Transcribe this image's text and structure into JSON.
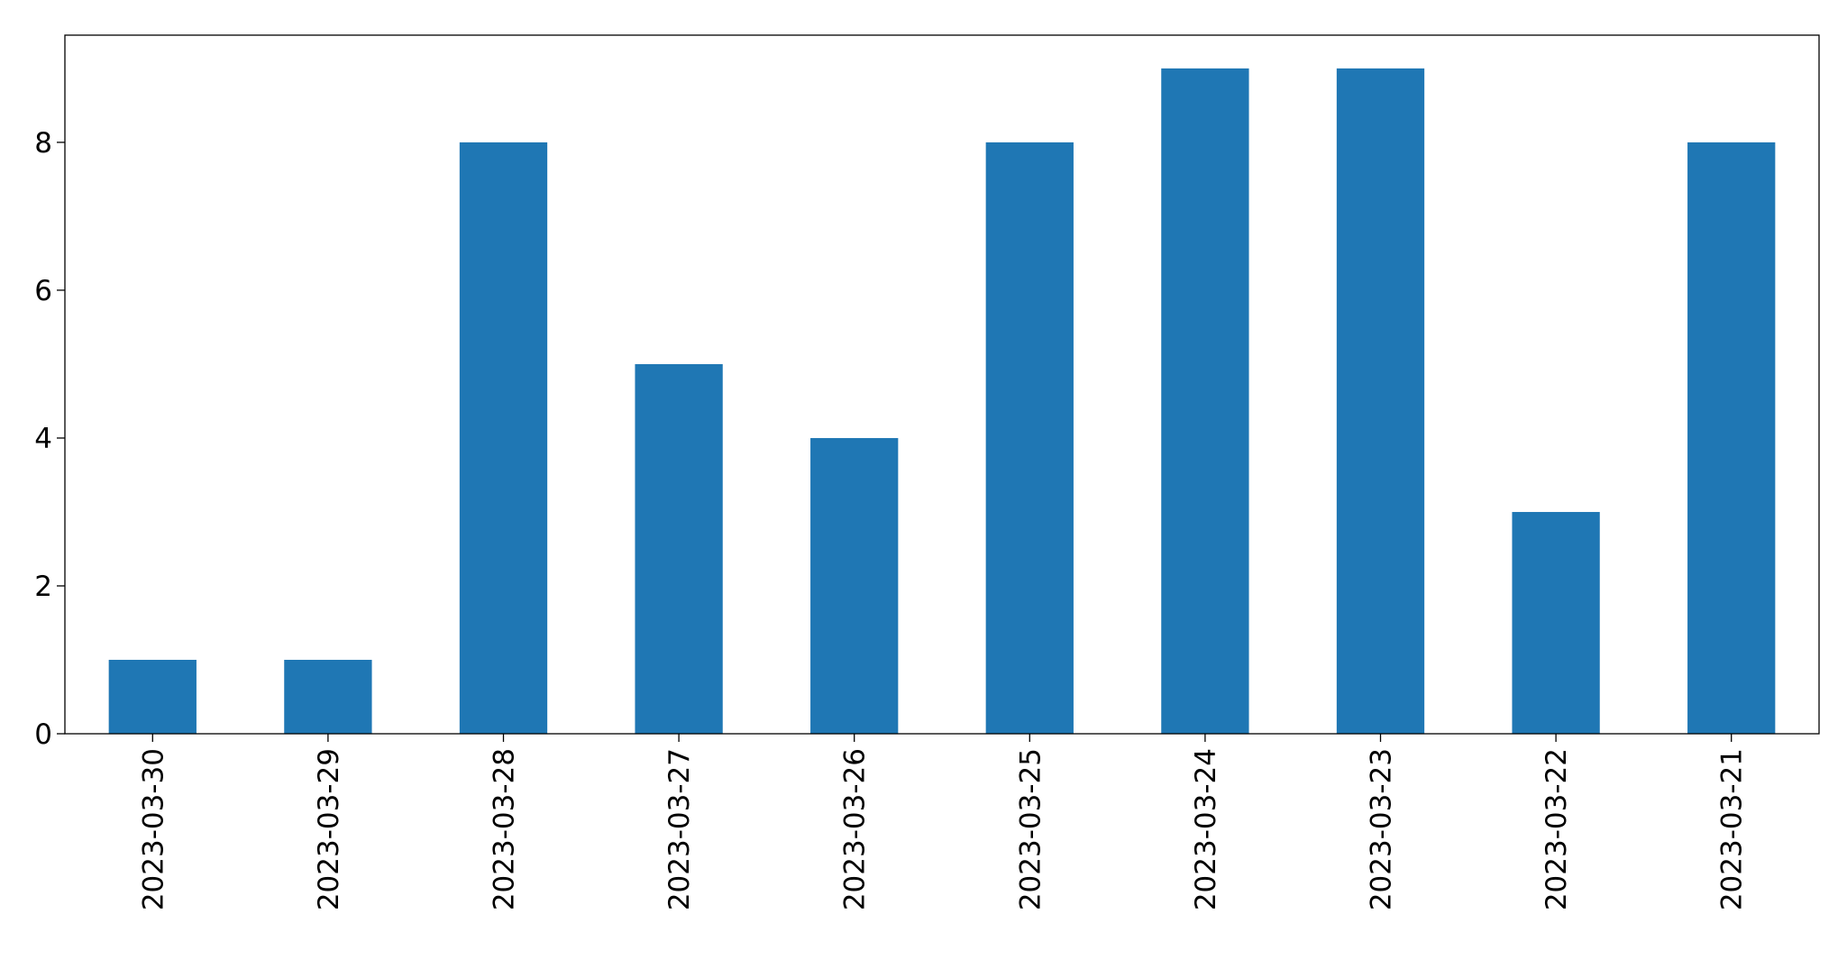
{
  "chart_data": {
    "type": "bar",
    "categories": [
      "2023-03-30",
      "2023-03-29",
      "2023-03-28",
      "2023-03-27",
      "2023-03-26",
      "2023-03-25",
      "2023-03-24",
      "2023-03-23",
      "2023-03-22",
      "2023-03-21"
    ],
    "values": [
      1,
      1,
      8,
      5,
      4,
      8,
      9,
      9,
      3,
      8
    ],
    "color": "#1f77b4",
    "ylim": [
      0,
      9.45
    ],
    "yticks": [
      0,
      2,
      4,
      6,
      8
    ],
    "grid": false
  }
}
